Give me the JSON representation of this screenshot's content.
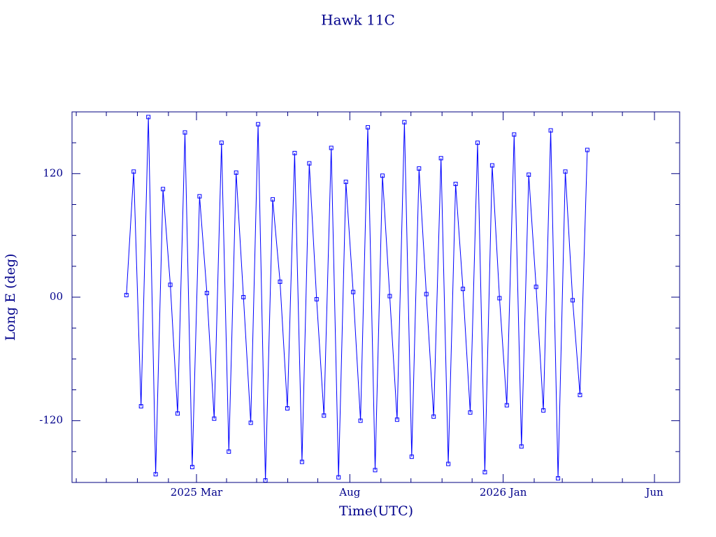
{
  "chart_data": {
    "type": "line",
    "title": "Hawk 11C",
    "xlabel": "Time(UTC)",
    "ylabel": "Long E (deg)",
    "color": "#0000ff",
    "axis_color": "#000080",
    "marker": "square",
    "xlim": [
      2024.8213,
      2026.4825
    ],
    "xticks": [
      {
        "value": 2025.1616,
        "label": "2025 Mar"
      },
      {
        "value": 2025.5808,
        "label": "Aug"
      },
      {
        "value": 2026.0,
        "label": "2026 Jan"
      },
      {
        "value": 2026.4137,
        "label": "Jun"
      }
    ],
    "xminorticks": [
      2024.8329,
      2024.9151,
      2025.0,
      2025.0849,
      2025.2438,
      2025.326,
      2025.411,
      2025.4932,
      2025.6658,
      2025.7479,
      2025.8329,
      2025.9151,
      2026.0849,
      2026.1616,
      2026.2438,
      2026.326
    ],
    "ylim": [
      -180,
      180
    ],
    "yticks": [
      -120,
      {
        "value": 0,
        "label": "00"
      },
      120
    ],
    "yminorticks": [
      -150,
      -90,
      -60,
      -30,
      30,
      60,
      90,
      150
    ],
    "x": [
      2024.97,
      2024.99,
      2025.01,
      2025.03,
      2025.05,
      2025.07,
      2025.09,
      2025.11,
      2025.13,
      2025.15,
      2025.17,
      2025.19,
      2025.21,
      2025.23,
      2025.25,
      2025.27,
      2025.29,
      2025.31,
      2025.33,
      2025.35,
      2025.37,
      2025.39,
      2025.41,
      2025.43,
      2025.45,
      2025.47,
      2025.49,
      2025.51,
      2025.53,
      2025.55,
      2025.57,
      2025.59,
      2025.61,
      2025.63,
      2025.65,
      2025.67,
      2025.69,
      2025.71,
      2025.73,
      2025.75,
      2025.77,
      2025.79,
      2025.81,
      2025.83,
      2025.85,
      2025.87,
      2025.89,
      2025.91,
      2025.93,
      2025.95,
      2025.97,
      2025.99,
      2026.01,
      2026.03,
      2026.05,
      2026.07,
      2026.09,
      2026.11,
      2026.13,
      2026.15,
      2026.17,
      2026.19,
      2026.21,
      2026.23
    ],
    "values": [
      2,
      122,
      -106,
      175,
      -172,
      105,
      12,
      -113,
      160,
      -165,
      98,
      4,
      -118,
      150,
      -150,
      121,
      0,
      -122,
      168,
      -178,
      95,
      15,
      -108,
      140,
      -160,
      130,
      -2,
      -115,
      145,
      -175,
      112,
      5,
      -120,
      165,
      -168,
      118,
      1,
      -119,
      170,
      -155,
      125,
      3,
      -116,
      135,
      -162,
      110,
      8,
      -112,
      150,
      -170,
      128,
      -1,
      -105,
      158,
      -145,
      119,
      10,
      -110,
      162,
      -176,
      122,
      -3,
      -95,
      143
    ]
  }
}
